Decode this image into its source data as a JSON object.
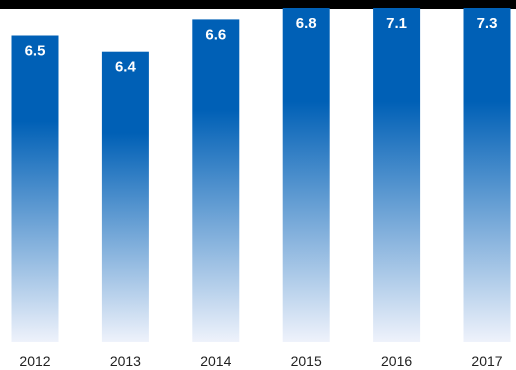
{
  "chart_data": {
    "type": "bar",
    "categories": [
      "2012",
      "2013",
      "2014",
      "2015",
      "2016",
      "2017"
    ],
    "values": [
      6.5,
      6.4,
      6.6,
      6.8,
      7.1,
      7.3
    ],
    "value_labels": [
      "6.5",
      "6.4",
      "6.6",
      "6.8",
      "7.1",
      "7.3"
    ],
    "title": "",
    "xlabel": "",
    "ylabel": "",
    "grid": false,
    "colors": {
      "bar_top": "#0060b6",
      "bar_bottom": "#eef2fb",
      "top_rule": "#000000"
    }
  }
}
